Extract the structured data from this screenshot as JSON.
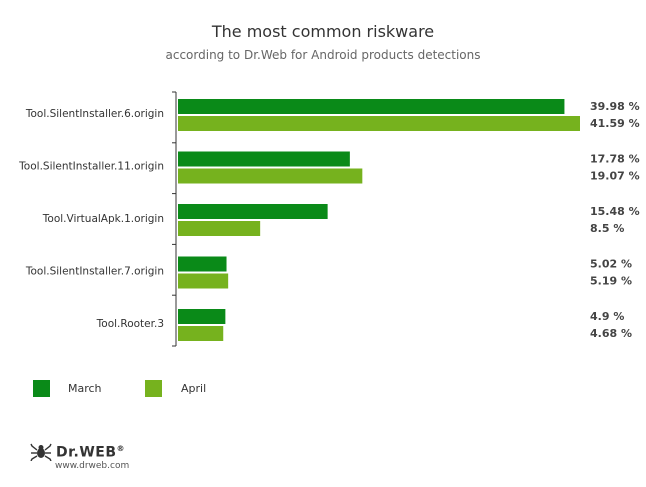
{
  "title": "The most common riskware",
  "subtitle": "according to Dr.Web for Android products detections",
  "colors": {
    "march": "#0a8a18",
    "april": "#76b21e",
    "axis": "#333333"
  },
  "chart_data": {
    "type": "bar",
    "orientation": "horizontal",
    "title": "The most common riskware",
    "subtitle": "according to Dr.Web for Android products detections",
    "categories": [
      "Tool.SilentInstaller.6.origin",
      "Tool.SilentInstaller.11.origin",
      "Tool.VirtualApk.1.origin",
      "Tool.SilentInstaller.7.origin",
      "Tool.Rooter.3"
    ],
    "series": [
      {
        "name": "March",
        "values": [
          39.98,
          17.78,
          15.48,
          5.02,
          4.9
        ],
        "labels": [
          "39.98 %",
          "17.78 %",
          "15.48 %",
          "5.02 %",
          "4.9 %"
        ]
      },
      {
        "name": "April",
        "values": [
          41.59,
          19.07,
          8.5,
          5.19,
          4.68
        ],
        "labels": [
          "41.59 %",
          "19.07 %",
          "8.5 %",
          "5.19 %",
          "4.68 %"
        ]
      }
    ],
    "legend_position": "bottom-left"
  },
  "legend": [
    {
      "label": "March"
    },
    {
      "label": "April"
    }
  ],
  "logo": {
    "brand": "Dr.WEB",
    "reg": "®",
    "url": "www.drweb.com"
  }
}
